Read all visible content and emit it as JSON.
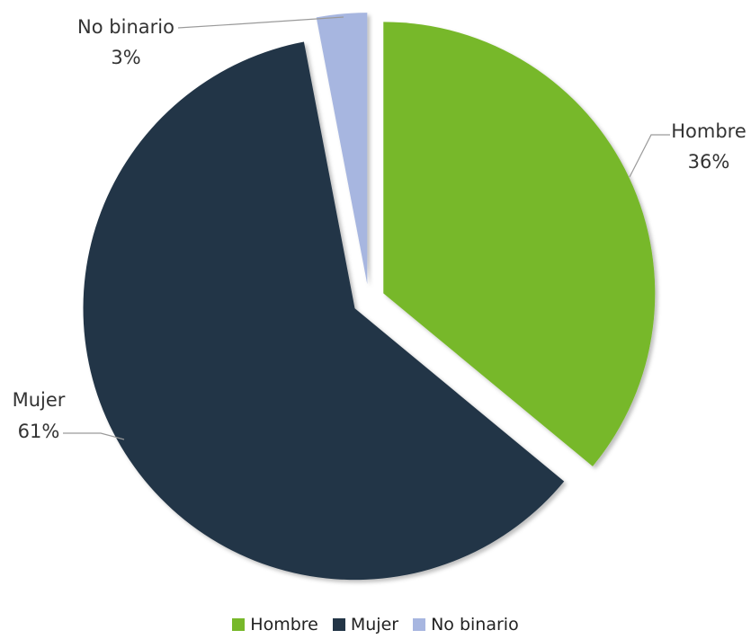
{
  "chart_data": {
    "type": "pie",
    "title": "",
    "legend_position": "bottom",
    "slices": [
      {
        "label": "Hombre",
        "value": 36,
        "value_label": "36%",
        "color": "#77B82A"
      },
      {
        "label": "Mujer",
        "value": 61,
        "value_label": "61%",
        "color": "#233546"
      },
      {
        "label": "No binario",
        "value": 3,
        "value_label": "3%",
        "color": "#A7B6E0"
      }
    ],
    "exploded": true
  }
}
